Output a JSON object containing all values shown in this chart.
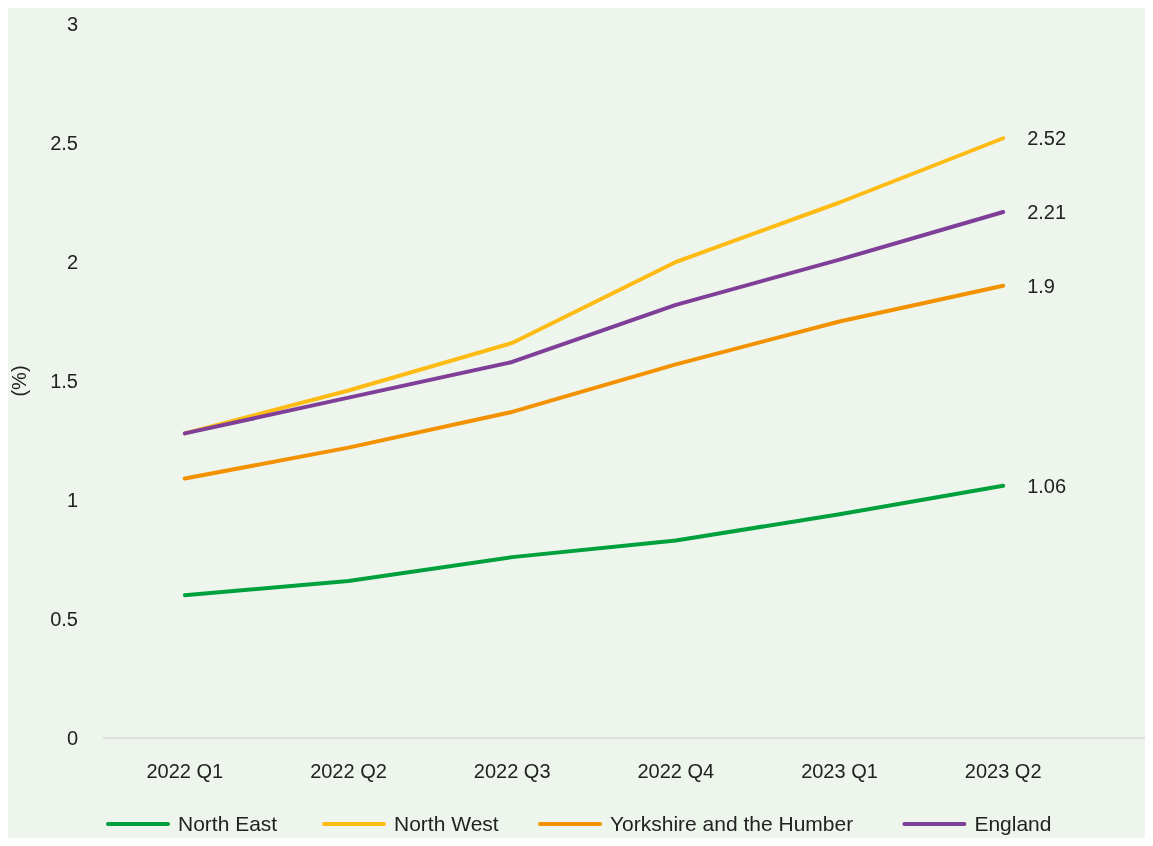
{
  "chart_data": {
    "type": "line",
    "ylabel": "(%)",
    "categories": [
      "2022 Q1",
      "2022 Q2",
      "2022 Q3",
      "2022 Q4",
      "2023 Q1",
      "2023 Q2"
    ],
    "ylim": [
      0,
      3
    ],
    "yticks": [
      0,
      0.5,
      1,
      1.5,
      2,
      2.5,
      3
    ],
    "grid": false,
    "legend": "bottom",
    "marker": "none",
    "line_style": "solid",
    "series": [
      {
        "name": "North East",
        "color": "#00a03c",
        "values": [
          0.6,
          0.66,
          0.76,
          0.83,
          0.94,
          1.06
        ],
        "value_labels": [
          null,
          null,
          null,
          null,
          null,
          "1.06"
        ]
      },
      {
        "name": "North West",
        "color": "#fdbb13",
        "values": [
          1.28,
          1.46,
          1.66,
          2.0,
          2.25,
          2.52
        ],
        "value_labels": [
          null,
          null,
          null,
          null,
          null,
          "2.52"
        ]
      },
      {
        "name": "Yorkshire and the Humber",
        "color": "#f39200",
        "values": [
          1.09,
          1.22,
          1.37,
          1.57,
          1.75,
          1.9
        ],
        "value_labels": [
          null,
          null,
          null,
          null,
          null,
          "1.9"
        ]
      },
      {
        "name": "England",
        "color": "#7f3f98",
        "values": [
          1.28,
          1.43,
          1.58,
          1.82,
          2.01,
          2.21
        ],
        "value_labels": [
          null,
          null,
          null,
          null,
          null,
          "2.21"
        ]
      }
    ]
  }
}
